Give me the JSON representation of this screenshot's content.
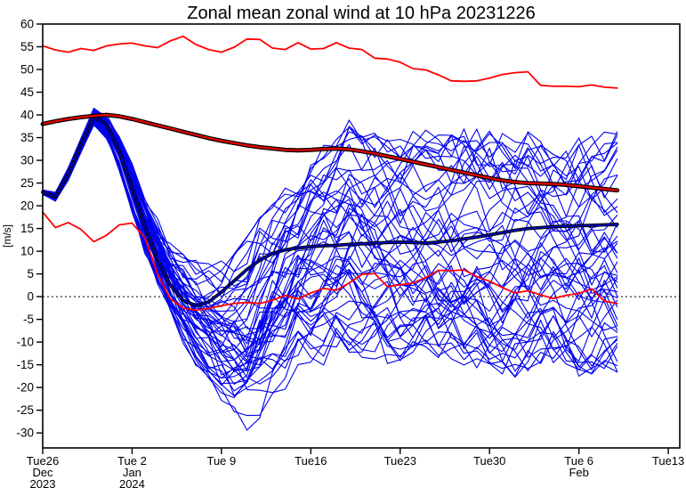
{
  "title": "Zonal mean zonal wind at 10 hPa 20231226",
  "chart_data": {
    "type": "line",
    "title": "Zonal mean zonal wind at 10 hPa 20231226",
    "xlabel": "",
    "ylabel": "[m/s]",
    "ylim": [
      -33.3,
      60
    ],
    "yticks": [
      -30,
      -25,
      -20,
      -15,
      -10,
      -5,
      0,
      5,
      10,
      15,
      20,
      25,
      30,
      35,
      40,
      45,
      50,
      55,
      60
    ],
    "grid": false,
    "legend": "none",
    "zero_line": {
      "value": 0,
      "style": "dashed",
      "color": "#000000"
    },
    "x_axis": {
      "unit": "days since start date 2023-12-26",
      "range": [
        0,
        49.9
      ],
      "ticks": [
        {
          "day": 0,
          "line1": "Tue26",
          "line2": "Dec",
          "line3": "2023"
        },
        {
          "day": 7,
          "line1": "Tue 2",
          "line2": "Jan",
          "line3": "2024"
        },
        {
          "day": 14,
          "line1": "Tue 9",
          "line2": "",
          "line3": ""
        },
        {
          "day": 21,
          "line1": "Tue16",
          "line2": "",
          "line3": ""
        },
        {
          "day": 28,
          "line1": "Tue23",
          "line2": "",
          "line3": ""
        },
        {
          "day": 35,
          "line1": "Tue30",
          "line2": "",
          "line3": ""
        },
        {
          "day": 42,
          "line1": "Tue 6",
          "line2": "Feb",
          "line3": ""
        },
        {
          "day": 49,
          "line1": "Tue13",
          "line2": "",
          "line3": ""
        }
      ]
    },
    "days": [
      0,
      1,
      2,
      3,
      4,
      5,
      6,
      7,
      8,
      9,
      10,
      11,
      12,
      13,
      14,
      15,
      16,
      17,
      18,
      19,
      20,
      21,
      22,
      23,
      24,
      25,
      26,
      27,
      28,
      29,
      30,
      31,
      32,
      33,
      34,
      35,
      36,
      37,
      38,
      39,
      40,
      41,
      42,
      43,
      44,
      45
    ],
    "series": [
      {
        "name": "climatology-upper",
        "color": "#ff0000",
        "width": 1.8,
        "values": [
          55.2,
          54.3,
          53.8,
          54.6,
          54.2,
          55.2,
          55.6,
          55.8,
          55.2,
          54.8,
          56.3,
          57.3,
          55.5,
          54.4,
          53.8,
          54.9,
          56.7,
          56.6,
          54.7,
          54.4,
          55.9,
          54.5,
          54.6,
          55.9,
          54.7,
          54.4,
          52.5,
          52.3,
          51.6,
          50.2,
          49.9,
          48.8,
          47.5,
          47.4,
          47.5,
          48.1,
          48.9,
          49.3,
          49.5,
          46.5,
          46.3,
          46.3,
          46.2,
          46.6,
          46.1,
          45.9
        ]
      },
      {
        "name": "climatology-mean",
        "color": "#dd0000",
        "width": 2.4,
        "edge_color": "#000000",
        "edge_width": 4.8,
        "values": [
          38.0,
          38.6,
          39.1,
          39.5,
          39.8,
          40.0,
          39.7,
          39.1,
          38.4,
          37.7,
          37.0,
          36.3,
          35.6,
          34.9,
          34.3,
          33.8,
          33.3,
          32.9,
          32.6,
          32.3,
          32.2,
          32.3,
          32.5,
          32.6,
          32.4,
          32.0,
          31.5,
          30.9,
          30.3,
          29.7,
          29.1,
          28.5,
          27.9,
          27.3,
          26.7,
          26.1,
          25.6,
          25.2,
          25.0,
          24.9,
          24.8,
          24.6,
          24.3,
          24.0,
          23.7,
          23.4
        ]
      },
      {
        "name": "analysis",
        "color": "#ff0000",
        "width": 1.8,
        "values": [
          18.6,
          15.2,
          16.3,
          14.8,
          12.1,
          13.5,
          15.8,
          16.2,
          13.0,
          5.0,
          -0.5,
          -2.5,
          -3.0,
          -2.6,
          -2.0,
          -1.5,
          -1.3,
          -1.5,
          -0.8,
          0.3,
          -0.5,
          0.8,
          1.8,
          1.4,
          3.0,
          4.9,
          5.1,
          2.2,
          2.6,
          3.0,
          4.2,
          5.8,
          5.7,
          5.9,
          4.4,
          3.4,
          2.0,
          0.8,
          1.3,
          0.4,
          -0.4,
          0.3,
          0.7,
          1.7,
          -1.0,
          -1.5
        ]
      },
      {
        "name": "ensemble-mean",
        "color": "#0000bb",
        "width": 1.8,
        "edge_color": "#000000",
        "edge_width": 3.8,
        "values": [
          23.0,
          22.0,
          27.0,
          33.5,
          39.5,
          38.0,
          32.0,
          24.0,
          15.5,
          8.0,
          2.5,
          -0.8,
          -2.0,
          -1.2,
          1.0,
          3.5,
          6.0,
          8.0,
          9.5,
          10.3,
          10.7,
          11.0,
          11.2,
          11.3,
          11.5,
          11.6,
          11.8,
          11.9,
          12.0,
          11.9,
          11.8,
          12.0,
          12.3,
          12.7,
          13.1,
          13.6,
          14.1,
          14.6,
          15.0,
          15.2,
          15.4,
          15.5,
          15.6,
          15.7,
          15.8,
          15.9
        ]
      }
    ],
    "ensemble": {
      "name": "ensemble-members",
      "count": 50,
      "color": "#0000ee",
      "width": 1.1,
      "seed": 7,
      "envelope_low": [
        22.5,
        21.0,
        25.5,
        31.5,
        37.5,
        35.0,
        28.0,
        19.0,
        10.0,
        3.0,
        -4.0,
        -10.0,
        -15.0,
        -20.0,
        -25.0,
        -29.0,
        -32.0,
        -28.0,
        -24.0,
        -21.0,
        -18.0,
        -16.0,
        -15.0,
        -14.0,
        -14.0,
        -15.0,
        -15.0,
        -16.0,
        -16.0,
        -15.0,
        -14.0,
        -15.0,
        -15.0,
        -16.0,
        -16.0,
        -18.0,
        -20.0,
        -19.0,
        -18.0,
        -17.0,
        -17.0,
        -18.0,
        -18.0,
        -18.0,
        -18.0,
        -18.5
      ],
      "envelope_high": [
        23.5,
        23.0,
        28.5,
        35.0,
        41.3,
        40.0,
        36.0,
        30.0,
        23.0,
        17.0,
        13.0,
        10.0,
        8.0,
        8.0,
        9.0,
        12.0,
        15.0,
        19.0,
        23.0,
        27.0,
        30.0,
        33.0,
        35.0,
        37.0,
        41.0,
        40.0,
        39.0,
        38.0,
        37.0,
        37.5,
        38.0,
        37.5,
        37.0,
        37.5,
        38.0,
        37.0,
        36.0,
        36.5,
        37.0,
        37.5,
        38.0,
        38.0,
        38.5,
        38.0,
        38.0,
        38.0
      ]
    },
    "frame_color": "#000000"
  }
}
